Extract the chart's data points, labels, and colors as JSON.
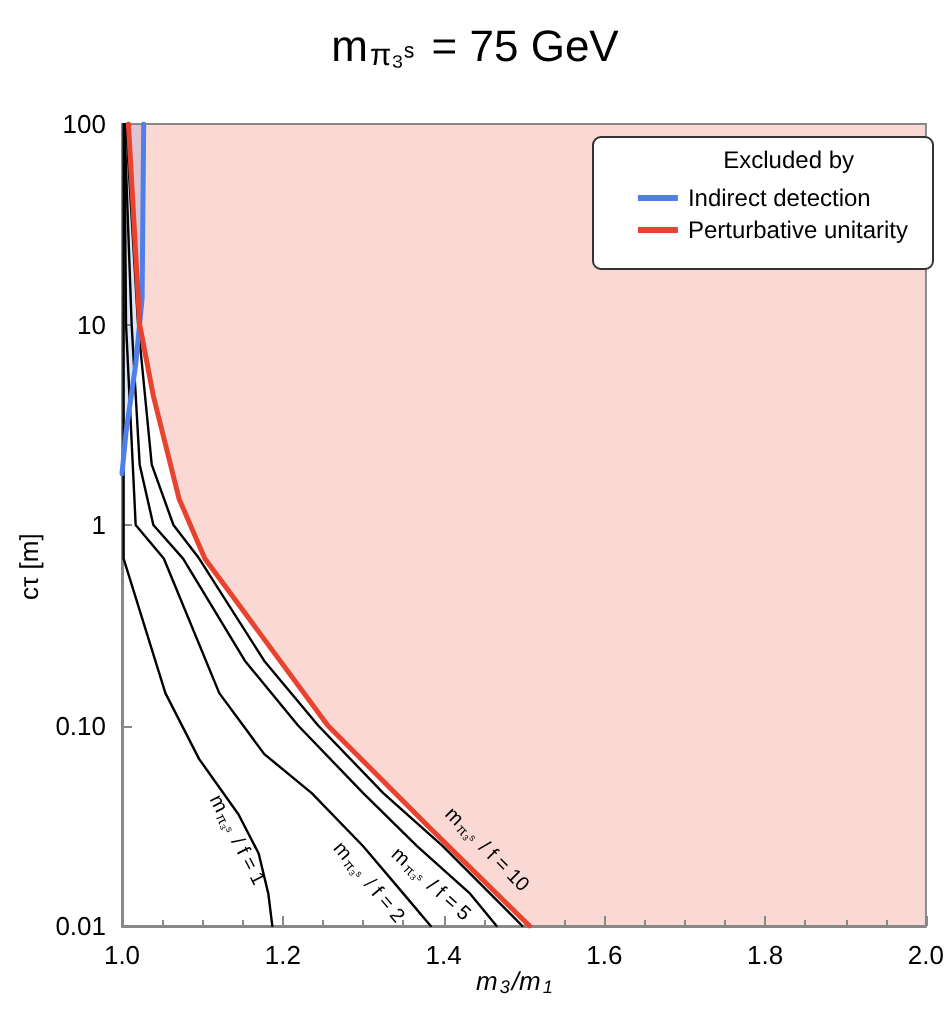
{
  "chart_data": {
    "type": "line",
    "title": "m$_{π₃ˢ}$ = 75 GeV",
    "xlabel": "m$_{3}$/m$_{1}$",
    "ylabel": "cτ [m]",
    "legend_title": "Excluded by",
    "legend": "top right",
    "grid": false,
    "log": "y",
    "marker": "none",
    "xlim": [
      1.0,
      2.0
    ],
    "xticks": [
      {
        "value": 1.0,
        "label": "1.0"
      },
      {
        "value": 1.2,
        "label": "1.2"
      },
      {
        "value": 1.4,
        "label": "1.4"
      },
      {
        "value": 1.6,
        "label": "1.6"
      },
      {
        "value": 1.8,
        "label": "1.8"
      },
      {
        "value": 2.0,
        "label": "2.0"
      }
    ],
    "ylim": [
      0.01,
      100
    ],
    "yticks": [
      0.01,
      {
        "value": 0.1,
        "label": "0.10"
      },
      1,
      10,
      100
    ],
    "series": [
      {
        "name": "Indirect detection",
        "color": "#4f7fe8",
        "x": [
          1.0,
          1.005,
          1.017,
          1.025,
          1.027
        ],
        "values": [
          1.8,
          2.9,
          6.3,
          13.5,
          100
        ]
      },
      {
        "name": "Perturbative unitarity",
        "color": "#e8432e",
        "x": [
          1.008,
          1.022,
          1.039,
          1.071,
          1.103,
          1.256,
          1.379,
          1.507
        ],
        "values": [
          100,
          10,
          4.4,
          1.35,
          0.68,
          0.1,
          0.032,
          0.01
        ]
      },
      {
        "name": "m$_{π₃ˢ}$ / f = 1",
        "color": "#000000",
        "x": [
          1.002,
          1.002,
          1.054,
          1.096,
          1.145,
          1.17,
          1.182,
          1.187
        ],
        "values": [
          100,
          0.68,
          0.145,
          0.068,
          0.036,
          0.023,
          0.0145,
          0.01
        ]
      },
      {
        "name": "m$_{π₃ˢ}$ / f = 2",
        "color": "#000000",
        "x": [
          1.003,
          1.005,
          1.017,
          1.052,
          1.121,
          1.177,
          1.236,
          1.3,
          1.35,
          1.384
        ],
        "values": [
          100,
          10,
          1,
          0.68,
          0.145,
          0.072,
          0.046,
          0.025,
          0.0145,
          0.01
        ]
      },
      {
        "name": "m$_{π₃ˢ}$ / f = 5",
        "color": "#000000",
        "x": [
          1.003,
          1.012,
          1.022,
          1.039,
          1.076,
          1.153,
          1.219,
          1.3,
          1.367,
          1.433,
          1.466
        ],
        "values": [
          100,
          10,
          2,
          1,
          0.68,
          0.21,
          0.1,
          0.046,
          0.025,
          0.0145,
          0.01
        ]
      },
      {
        "name": "m$_{π₃ˢ}$ / f = 10",
        "color": "#000000",
        "x": [
          1.005,
          1.02,
          1.037,
          1.064,
          1.096,
          1.177,
          1.244,
          1.325,
          1.399,
          1.458,
          1.498
        ],
        "values": [
          100,
          10,
          2,
          1,
          0.68,
          0.21,
          0.1,
          0.046,
          0.025,
          0.0145,
          0.01
        ]
      }
    ]
  }
}
